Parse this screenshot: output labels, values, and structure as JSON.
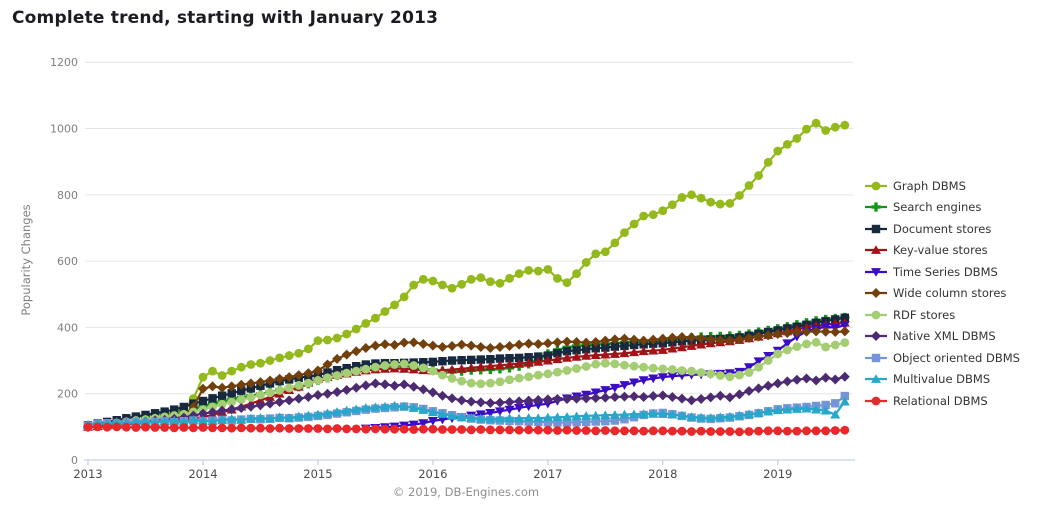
{
  "title": "Complete trend, starting with January 2013",
  "footer": "© 2019, DB-Engines.com",
  "y_axis": {
    "label": "Popularity Changes",
    "ticks": [
      0,
      200,
      400,
      600,
      800,
      1000,
      1200
    ],
    "max": 1200
  },
  "x_axis": {
    "years": [
      "2013",
      "2014",
      "2015",
      "2016",
      "2017",
      "2018",
      "2019"
    ]
  },
  "style_colors": {
    "grid": "#e6e6e6",
    "axis": "#c3d3e2",
    "tick_label_y": "#808080",
    "tick_label_x": "#4a4a4a",
    "footer_text": "#8f8f8f"
  },
  "chart_data": {
    "type": "line",
    "x_start": "2013-01",
    "x_interval": "month",
    "points_per_series": 80,
    "ylim": [
      0,
      1200
    ],
    "grid": "horizontal",
    "legend_position": "right",
    "series": [
      {
        "name": "Graph DBMS",
        "color": "#93b91c",
        "marker": "circle",
        "values": [
          100,
          105,
          112,
          118,
          125,
          130,
          133,
          138,
          140,
          142,
          155,
          185,
          250,
          268,
          255,
          268,
          280,
          288,
          292,
          300,
          308,
          315,
          322,
          335,
          360,
          362,
          368,
          380,
          395,
          412,
          428,
          448,
          468,
          492,
          528,
          545,
          540,
          528,
          518,
          530,
          545,
          550,
          538,
          533,
          548,
          562,
          572,
          570,
          575,
          548,
          535,
          562,
          596,
          622,
          628,
          655,
          686,
          712,
          736,
          740,
          752,
          770,
          792,
          800,
          790,
          778,
          772,
          774,
          798,
          828,
          858,
          898,
          932,
          952,
          970,
          998,
          1016,
          994,
          1004,
          1010
        ]
      },
      {
        "name": "Search engines",
        "color": "#109618",
        "marker": "plus",
        "values": [
          100,
          104,
          108,
          111,
          115,
          118,
          121,
          125,
          130,
          136,
          143,
          152,
          163,
          170,
          176,
          182,
          189,
          194,
          199,
          205,
          211,
          216,
          221,
          230,
          240,
          248,
          255,
          262,
          268,
          274,
          280,
          284,
          286,
          284,
          280,
          276,
          272,
          268,
          266,
          268,
          271,
          272,
          273,
          275,
          278,
          283,
          290,
          305,
          320,
          332,
          340,
          344,
          346,
          348,
          350,
          352,
          354,
          356,
          357,
          358,
          360,
          363,
          366,
          369,
          371,
          372,
          373,
          374,
          376,
          380,
          386,
          391,
          396,
          402,
          408,
          414,
          420,
          424,
          427,
          430
        ]
      },
      {
        "name": "Document stores",
        "color": "#17293e",
        "marker": "square",
        "values": [
          105,
          110,
          115,
          120,
          126,
          131,
          136,
          141,
          146,
          152,
          160,
          170,
          178,
          186,
          194,
          201,
          209,
          216,
          224,
          231,
          238,
          243,
          248,
          252,
          256,
          264,
          271,
          277,
          283,
          288,
          291,
          292,
          292,
          293,
          294,
          295,
          296,
          298,
          300,
          301,
          302,
          303,
          304,
          306,
          307,
          308,
          310,
          312,
          315,
          322,
          328,
          331,
          334,
          337,
          339,
          342,
          344,
          347,
          349,
          351,
          352,
          355,
          358,
          360,
          362,
          363,
          365,
          367,
          370,
          375,
          381,
          386,
          391,
          397,
          402,
          408,
          414,
          419,
          424,
          429
        ]
      },
      {
        "name": "Key-value stores",
        "color": "#a31217",
        "marker": "triangle-up",
        "values": [
          100,
          102,
          104,
          106,
          108,
          110,
          112,
          114,
          117,
          120,
          123,
          126,
          129,
          136,
          144,
          152,
          161,
          170,
          180,
          190,
          200,
          211,
          221,
          233,
          244,
          250,
          256,
          261,
          266,
          270,
          273,
          275,
          276,
          275,
          273,
          271,
          270,
          271,
          273,
          275,
          278,
          281,
          283,
          286,
          288,
          291,
          293,
          296,
          300,
          304,
          308,
          311,
          314,
          316,
          318,
          320,
          322,
          325,
          328,
          330,
          332,
          336,
          340,
          344,
          348,
          352,
          355,
          358,
          362,
          367,
          372,
          377,
          382,
          388,
          394,
          400,
          405,
          408,
          411,
          414
        ]
      },
      {
        "name": "Time Series DBMS",
        "color": "#3a0cc6",
        "marker": "triangle-down",
        "values": [
          null,
          null,
          null,
          null,
          null,
          null,
          null,
          null,
          null,
          null,
          null,
          null,
          null,
          null,
          null,
          null,
          null,
          null,
          null,
          null,
          null,
          null,
          null,
          null,
          null,
          null,
          null,
          null,
          null,
          95,
          97,
          99,
          101,
          104,
          107,
          111,
          118,
          122,
          126,
          130,
          134,
          138,
          142,
          147,
          152,
          157,
          162,
          166,
          170,
          178,
          186,
          192,
          197,
          204,
          211,
          218,
          226,
          234,
          241,
          246,
          250,
          253,
          255,
          257,
          258,
          259,
          260,
          262,
          266,
          280,
          298,
          314,
          330,
          352,
          372,
          388,
          396,
          402,
          399,
          407
        ]
      },
      {
        "name": "Wide column stores",
        "color": "#71400d",
        "marker": "diamond",
        "values": [
          100,
          104,
          108,
          112,
          116,
          119,
          122,
          126,
          129,
          132,
          136,
          160,
          215,
          222,
          218,
          222,
          227,
          231,
          235,
          240,
          245,
          250,
          256,
          262,
          270,
          288,
          305,
          318,
          328,
          338,
          345,
          349,
          347,
          354,
          355,
          350,
          345,
          341,
          344,
          348,
          345,
          341,
          338,
          341,
          344,
          348,
          351,
          350,
          352,
          355,
          357,
          356,
          354,
          356,
          360,
          364,
          366,
          363,
          360,
          363,
          366,
          369,
          371,
          370,
          367,
          364,
          362,
          361,
          364,
          368,
          372,
          376,
          380,
          383,
          385,
          387,
          388,
          387,
          386,
          388
        ]
      },
      {
        "name": "RDF stores",
        "color": "#a5cd74",
        "marker": "circle",
        "values": [
          100,
          104,
          108,
          112,
          115,
          119,
          122,
          126,
          130,
          134,
          138,
          145,
          152,
          160,
          168,
          175,
          182,
          189,
          196,
          203,
          210,
          217,
          225,
          232,
          240,
          248,
          255,
          262,
          268,
          274,
          280,
          285,
          288,
          290,
          285,
          278,
          268,
          256,
          246,
          238,
          232,
          230,
          232,
          236,
          242,
          247,
          251,
          256,
          260,
          265,
          270,
          276,
          282,
          289,
          292,
          290,
          286,
          283,
          280,
          277,
          275,
          273,
          270,
          268,
          264,
          260,
          255,
          251,
          256,
          264,
          280,
          300,
          320,
          332,
          342,
          350,
          355,
          341,
          347,
          354
        ]
      },
      {
        "name": "Native XML DBMS",
        "color": "#4d2b72",
        "marker": "diamond",
        "values": [
          100,
          103,
          106,
          109,
          112,
          114,
          116,
          119,
          121,
          124,
          128,
          134,
          140,
          144,
          149,
          153,
          157,
          161,
          165,
          170,
          175,
          180,
          185,
          190,
          196,
          200,
          205,
          211,
          218,
          225,
          231,
          228,
          224,
          228,
          221,
          213,
          204,
          194,
          186,
          180,
          176,
          174,
          172,
          173,
          175,
          177,
          179,
          181,
          183,
          184,
          184,
          185,
          186,
          187,
          188,
          190,
          191,
          192,
          190,
          193,
          195,
          190,
          185,
          180,
          184,
          189,
          194,
          189,
          198,
          208,
          216,
          224,
          231,
          237,
          242,
          246,
          240,
          248,
          243,
          251
        ]
      },
      {
        "name": "Object oriented DBMS",
        "color": "#7495d6",
        "marker": "square",
        "values": [
          104,
          108,
          111,
          109,
          112,
          114,
          112,
          115,
          117,
          114,
          117,
          119,
          117,
          119,
          121,
          119,
          122,
          124,
          123,
          125,
          127,
          126,
          128,
          130,
          133,
          136,
          140,
          144,
          148,
          152,
          155,
          157,
          159,
          161,
          159,
          154,
          147,
          141,
          135,
          129,
          125,
          122,
          120,
          119,
          118,
          117,
          116,
          115,
          114,
          113,
          113,
          114,
          115,
          116,
          117,
          119,
          123,
          129,
          136,
          140,
          142,
          138,
          133,
          128,
          125,
          124,
          126,
          128,
          132,
          136,
          141,
          147,
          153,
          156,
          158,
          160,
          163,
          166,
          171,
          193
        ]
      },
      {
        "name": "Multivalue DBMS",
        "color": "#27a7c9",
        "marker": "triangle-up",
        "values": [
          107,
          111,
          109,
          114,
          111,
          115,
          117,
          113,
          117,
          119,
          115,
          121,
          119,
          117,
          121,
          124,
          121,
          125,
          127,
          124,
          129,
          127,
          131,
          134,
          137,
          141,
          145,
          149,
          153,
          157,
          159,
          161,
          164,
          162,
          157,
          151,
          144,
          139,
          133,
          129,
          127,
          125,
          124,
          125,
          126,
          125,
          127,
          126,
          128,
          129,
          130,
          132,
          133,
          134,
          135,
          136,
          137,
          138,
          139,
          140,
          139,
          137,
          134,
          130,
          128,
          127,
          129,
          131,
          134,
          138,
          142,
          146,
          150,
          152,
          154,
          155,
          152,
          149,
          137,
          176
        ]
      },
      {
        "name": "Relational DBMS",
        "color": "#e8282b",
        "marker": "circle",
        "values": [
          100,
          100,
          99,
          100,
          99,
          98,
          99,
          98,
          98,
          97,
          98,
          97,
          98,
          97,
          97,
          96,
          97,
          96,
          96,
          95,
          96,
          95,
          95,
          95,
          95,
          94,
          95,
          94,
          94,
          93,
          94,
          93,
          93,
          93,
          92,
          93,
          93,
          92,
          92,
          92,
          91,
          92,
          91,
          91,
          91,
          90,
          91,
          90,
          90,
          89,
          90,
          89,
          89,
          88,
          89,
          88,
          88,
          88,
          87,
          88,
          88,
          87,
          87,
          86,
          87,
          86,
          86,
          86,
          85,
          86,
          87,
          88,
          88,
          87,
          87,
          88,
          88,
          88,
          89,
          90
        ]
      }
    ]
  }
}
